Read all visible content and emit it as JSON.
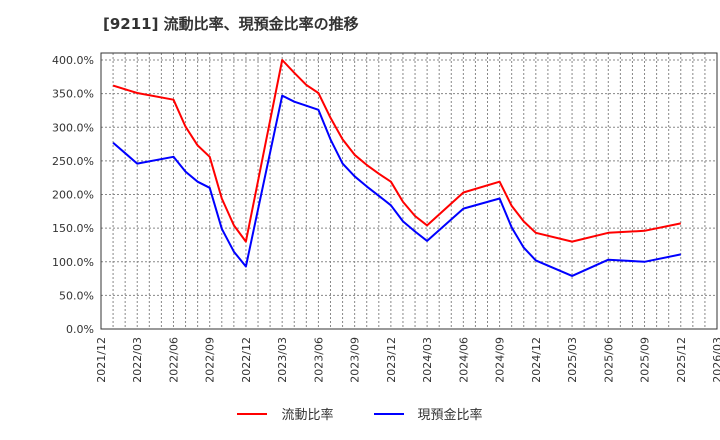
{
  "title": "[9211]  流動比率、現預金比率の推移",
  "chart_data": {
    "type": "line",
    "title": "[9211]  流動比率、現預金比率の推移",
    "xlabel": "",
    "ylabel": "",
    "ylim": [
      0,
      400
    ],
    "yticks": [
      "0.0%",
      "50.0%",
      "100.0%",
      "150.0%",
      "200.0%",
      "250.0%",
      "300.0%",
      "350.0%",
      "400.0%"
    ],
    "xticks": [
      "2021/12",
      "2022/03",
      "2022/06",
      "2022/09",
      "2022/12",
      "2023/03",
      "2023/06",
      "2023/09",
      "2023/12",
      "2024/03",
      "2024/06",
      "2024/09",
      "2024/12",
      "2025/03",
      "2025/06",
      "2025/09",
      "2025/12",
      "2026/03"
    ],
    "grid": true,
    "legend_position": "bottom",
    "x": [
      "2022/01",
      "2022/03",
      "2022/06",
      "2022/07",
      "2022/08",
      "2022/09",
      "2022/10",
      "2022/11",
      "2022/12",
      "2023/03",
      "2023/04",
      "2023/05",
      "2023/06",
      "2023/07",
      "2023/08",
      "2023/09",
      "2023/10",
      "2023/11",
      "2023/12",
      "2024/01",
      "2024/02",
      "2024/03",
      "2024/06",
      "2024/09",
      "2024/10",
      "2024/11",
      "2024/12",
      "2025/03",
      "2025/06",
      "2025/09",
      "2025/12"
    ],
    "series": [
      {
        "name": "流動比率",
        "color": "#ff0000",
        "values": [
          362,
          351,
          341,
          301,
          273,
          256,
          194,
          154,
          130,
          400,
          381,
          363,
          351,
          314,
          282,
          259,
          244,
          231,
          219,
          189,
          168,
          154,
          203,
          219,
          183,
          160,
          143,
          130,
          143,
          146,
          157
        ]
      },
      {
        "name": "現預金比率",
        "color": "#0000ff",
        "values": [
          277,
          246,
          256,
          234,
          219,
          210,
          149,
          115,
          93,
          347,
          338,
          332,
          326,
          282,
          246,
          227,
          212,
          198,
          184,
          160,
          145,
          131,
          179,
          194,
          151,
          121,
          102,
          79,
          103,
          100,
          111
        ]
      }
    ]
  },
  "legend": [
    {
      "label": "流動比率",
      "color": "#ff0000"
    },
    {
      "label": "現預金比率",
      "color": "#0000ff"
    }
  ]
}
